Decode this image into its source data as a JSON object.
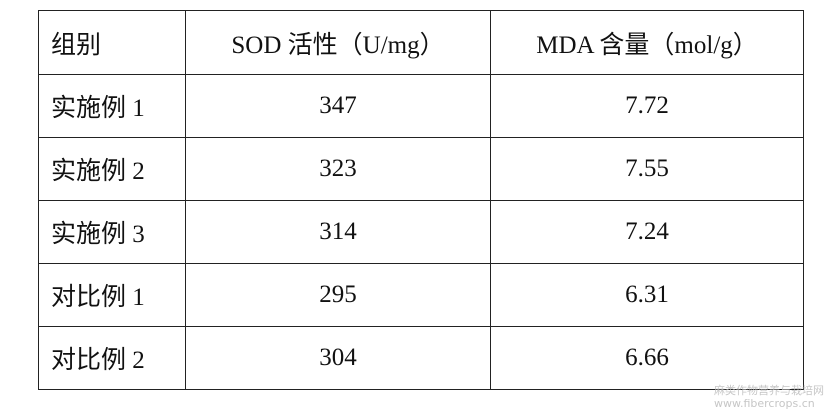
{
  "table": {
    "header": [
      "组别",
      "SOD 活性（U/mg）",
      "MDA 含量（mol/g）"
    ],
    "rows": [
      [
        "实施例 1",
        "347",
        "7.72"
      ],
      [
        "实施例 2",
        "323",
        "7.55"
      ],
      [
        "实施例 3",
        "314",
        "7.24"
      ],
      [
        "对比例 1",
        "295",
        "6.31"
      ],
      [
        "对比例 2",
        "304",
        "6.66"
      ]
    ]
  },
  "watermark": [
    "麻类作物营养与栽培网",
    "www.fibercrops.cn"
  ]
}
